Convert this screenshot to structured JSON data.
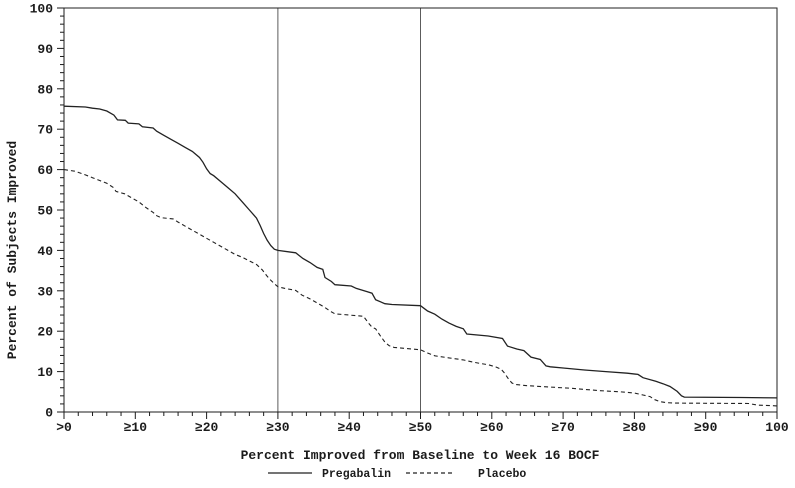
{
  "figure": {
    "y_axis_title": "Percent of Subjects Improved",
    "x_axis_title": "Percent Improved from Baseline to Week 16 BOCF"
  },
  "colors": {
    "line": "#222222",
    "reference_line": "#4a4a4a",
    "background": "#ffffff",
    "text": "#1b1b1b"
  },
  "chart_data": {
    "type": "line",
    "title": "",
    "xlabel": "Percent Improved from Baseline to Week 16 BOCF",
    "ylabel": "Percent of Subjects Improved",
    "xlim": [
      0,
      100
    ],
    "ylim": [
      0,
      100
    ],
    "grid": false,
    "legend_position": "bottom",
    "minor_tick_step": 2,
    "reference_lines_x": [
      30,
      50
    ],
    "x_ticks": [
      {
        "value": 0,
        "label": ">0"
      },
      {
        "value": 10,
        "label": "≥10"
      },
      {
        "value": 20,
        "label": "≥20"
      },
      {
        "value": 30,
        "label": "≥30"
      },
      {
        "value": 40,
        "label": "≥40"
      },
      {
        "value": 50,
        "label": "≥50"
      },
      {
        "value": 60,
        "label": "≥60"
      },
      {
        "value": 70,
        "label": "≥70"
      },
      {
        "value": 80,
        "label": "≥80"
      },
      {
        "value": 90,
        "label": "≥90"
      },
      {
        "value": 100,
        "label": "100"
      }
    ],
    "y_ticks": [
      0,
      10,
      20,
      30,
      40,
      50,
      60,
      70,
      80,
      90,
      100
    ],
    "series": [
      {
        "name": "Pregabalin",
        "style": "solid",
        "points": [
          [
            0,
            75.7
          ],
          [
            3,
            75.5
          ],
          [
            4,
            75.2
          ],
          [
            5,
            75.0
          ],
          [
            6,
            74.5
          ],
          [
            7,
            73.5
          ],
          [
            7.5,
            72.3
          ],
          [
            8.6,
            72.2
          ],
          [
            9,
            71.5
          ],
          [
            10.5,
            71.3
          ],
          [
            11,
            70.6
          ],
          [
            12.5,
            70.3
          ],
          [
            13,
            69.5
          ],
          [
            14,
            68.5
          ],
          [
            15,
            67.5
          ],
          [
            16,
            66.5
          ],
          [
            17,
            65.5
          ],
          [
            18,
            64.5
          ],
          [
            19,
            63.0
          ],
          [
            19.5,
            61.8
          ],
          [
            20,
            60.2
          ],
          [
            20.5,
            59.0
          ],
          [
            21,
            58.5
          ],
          [
            22,
            57.0
          ],
          [
            23,
            55.5
          ],
          [
            24,
            54.0
          ],
          [
            25,
            52.0
          ],
          [
            26,
            50.0
          ],
          [
            27,
            48.0
          ],
          [
            27.5,
            46.2
          ],
          [
            28,
            44.2
          ],
          [
            28.5,
            42.5
          ],
          [
            29,
            41.2
          ],
          [
            29.5,
            40.3
          ],
          [
            30,
            40.0
          ],
          [
            32.5,
            39.4
          ],
          [
            33.5,
            38.0
          ],
          [
            34.5,
            37.0
          ],
          [
            35.5,
            35.8
          ],
          [
            36.3,
            35.3
          ],
          [
            36.6,
            33.3
          ],
          [
            37.5,
            32.3
          ],
          [
            38,
            31.5
          ],
          [
            40.3,
            31.2
          ],
          [
            41,
            30.6
          ],
          [
            42.5,
            29.8
          ],
          [
            43.2,
            29.4
          ],
          [
            43.7,
            27.8
          ],
          [
            45,
            26.8
          ],
          [
            46,
            26.6
          ],
          [
            50,
            26.3
          ],
          [
            51,
            25.0
          ],
          [
            52,
            24.2
          ],
          [
            53,
            23.0
          ],
          [
            54,
            22.0
          ],
          [
            55,
            21.2
          ],
          [
            56,
            20.6
          ],
          [
            56.5,
            19.3
          ],
          [
            59.5,
            18.8
          ],
          [
            61.5,
            18.2
          ],
          [
            62.2,
            16.3
          ],
          [
            63.5,
            15.6
          ],
          [
            64.5,
            15.2
          ],
          [
            65.5,
            13.6
          ],
          [
            66.8,
            13.0
          ],
          [
            67.6,
            11.4
          ],
          [
            68.2,
            11.2
          ],
          [
            70,
            10.9
          ],
          [
            73,
            10.4
          ],
          [
            76,
            10.0
          ],
          [
            79,
            9.6
          ],
          [
            80.5,
            9.3
          ],
          [
            81.2,
            8.5
          ],
          [
            83,
            7.6
          ],
          [
            84,
            7.0
          ],
          [
            85,
            6.3
          ],
          [
            86,
            5.1
          ],
          [
            86.6,
            4.0
          ],
          [
            87,
            3.7
          ],
          [
            95,
            3.6
          ],
          [
            100,
            3.5
          ]
        ]
      },
      {
        "name": "Placebo",
        "style": "dashed",
        "points": [
          [
            0,
            60.0
          ],
          [
            1.5,
            59.6
          ],
          [
            2,
            59.3
          ],
          [
            3,
            58.7
          ],
          [
            4,
            58.0
          ],
          [
            5,
            57.3
          ],
          [
            6,
            56.6
          ],
          [
            6.9,
            55.6
          ],
          [
            7.3,
            54.6
          ],
          [
            8.5,
            54.0
          ],
          [
            9.5,
            53.0
          ],
          [
            10.5,
            52.0
          ],
          [
            11.5,
            50.6
          ],
          [
            12.5,
            49.4
          ],
          [
            13,
            48.6
          ],
          [
            13.6,
            48.1
          ],
          [
            15.3,
            47.8
          ],
          [
            16,
            47.0
          ],
          [
            17,
            46.0
          ],
          [
            18,
            45.0
          ],
          [
            19,
            44.0
          ],
          [
            20,
            43.0
          ],
          [
            21,
            42.0
          ],
          [
            22,
            41.0
          ],
          [
            23,
            40.0
          ],
          [
            24,
            39.0
          ],
          [
            25,
            38.3
          ],
          [
            26,
            37.4
          ],
          [
            27,
            36.5
          ],
          [
            27.8,
            35.2
          ],
          [
            28.5,
            33.6
          ],
          [
            29,
            32.6
          ],
          [
            29.6,
            31.6
          ],
          [
            30,
            31.0
          ],
          [
            31,
            30.6
          ],
          [
            32.5,
            30.1
          ],
          [
            33.4,
            28.9
          ],
          [
            34.5,
            28.0
          ],
          [
            35.5,
            27.0
          ],
          [
            36.5,
            26.0
          ],
          [
            37.3,
            25.0
          ],
          [
            38,
            24.3
          ],
          [
            42,
            23.7
          ],
          [
            42.7,
            22.0
          ],
          [
            43.2,
            21.0
          ],
          [
            43.7,
            20.6
          ],
          [
            44.3,
            19.0
          ],
          [
            45,
            17.3
          ],
          [
            45.6,
            16.4
          ],
          [
            46.3,
            16.0
          ],
          [
            50,
            15.4
          ],
          [
            51,
            14.6
          ],
          [
            52,
            13.9
          ],
          [
            54,
            13.4
          ],
          [
            56,
            12.9
          ],
          [
            57.5,
            12.3
          ],
          [
            58.4,
            12.0
          ],
          [
            59.5,
            11.7
          ],
          [
            60.5,
            11.2
          ],
          [
            61.3,
            10.6
          ],
          [
            61.8,
            9.6
          ],
          [
            62.3,
            8.3
          ],
          [
            62.8,
            7.2
          ],
          [
            63.3,
            6.8
          ],
          [
            65,
            6.5
          ],
          [
            68,
            6.2
          ],
          [
            71,
            5.9
          ],
          [
            73,
            5.6
          ],
          [
            75,
            5.3
          ],
          [
            78,
            5.0
          ],
          [
            80,
            4.7
          ],
          [
            81.2,
            4.2
          ],
          [
            82.2,
            3.8
          ],
          [
            82.8,
            3.1
          ],
          [
            83.5,
            2.6
          ],
          [
            84.5,
            2.3
          ],
          [
            86,
            2.2
          ],
          [
            96,
            2.1
          ],
          [
            97.3,
            1.7
          ],
          [
            100,
            1.5
          ]
        ]
      }
    ]
  },
  "legend": [
    {
      "label": "Pregabalin",
      "style": "solid"
    },
    {
      "label": "Placebo",
      "style": "dashed"
    }
  ]
}
